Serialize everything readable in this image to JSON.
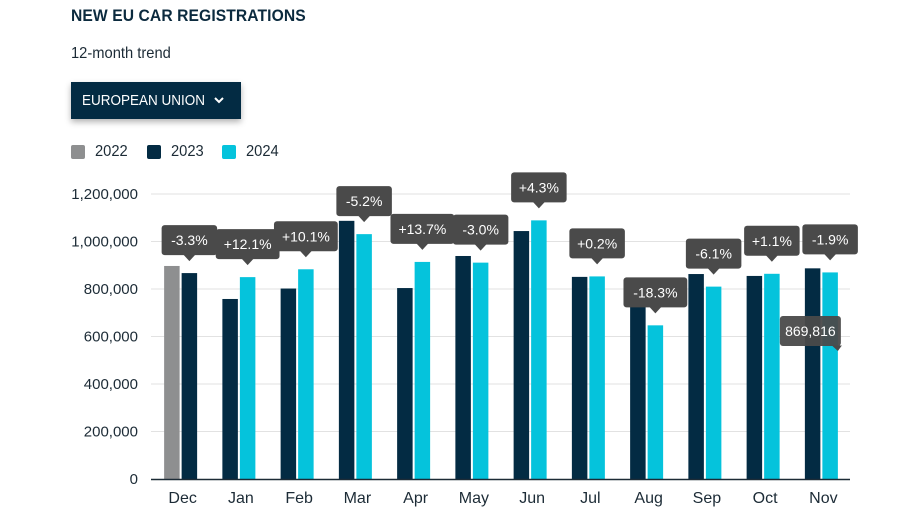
{
  "header": {
    "title": "NEW EU CAR REGISTRATIONS",
    "subtitle": "12-month trend"
  },
  "region_select": {
    "label": "EUROPEAN UNION",
    "icon": "chevron-down-icon"
  },
  "colors": {
    "2022": "#8e8f90",
    "2023": "#032b43",
    "2024": "#05c3dc",
    "tooltip_bg": "#4a4a4a",
    "grid": "#e2e2e2",
    "axis": "#1c2b36"
  },
  "chart_data": {
    "type": "bar",
    "title": "NEW EU CAR REGISTRATIONS",
    "subtitle": "12-month trend",
    "xlabel": "",
    "ylabel": "",
    "ylim": [
      0,
      1200000
    ],
    "yticks": [
      0,
      200000,
      400000,
      600000,
      800000,
      1000000,
      1200000
    ],
    "ytick_labels": [
      "0",
      "200,000",
      "400,000",
      "600,000",
      "800,000",
      "1,000,000",
      "1,200,000"
    ],
    "grid": true,
    "legend_position": "top-left",
    "categories": [
      "Dec",
      "Jan",
      "Feb",
      "Mar",
      "Apr",
      "May",
      "Jun",
      "Jul",
      "Aug",
      "Sep",
      "Oct",
      "Nov"
    ],
    "series": [
      {
        "name": "2022",
        "values": [
          897000,
          null,
          null,
          null,
          null,
          null,
          null,
          null,
          null,
          null,
          null,
          null
        ]
      },
      {
        "name": "2023",
        "values": [
          867000,
          758000,
          802000,
          1087000,
          804000,
          939000,
          1044000,
          851000,
          792000,
          863000,
          855000,
          887000
        ]
      },
      {
        "name": "2024",
        "values": [
          null,
          850000,
          883000,
          1031000,
          914000,
          911000,
          1089000,
          853000,
          647000,
          810000,
          864000,
          869816
        ]
      }
    ],
    "change_labels": [
      "-3.3%",
      "+12.1%",
      "+10.1%",
      "-5.2%",
      "+13.7%",
      "-3.0%",
      "+4.3%",
      "+0.2%",
      "-18.3%",
      "-6.1%",
      "+1.1%",
      "-1.9%"
    ],
    "hover_tooltip": {
      "category": "Nov",
      "series": "2024",
      "label": "869,816"
    }
  }
}
